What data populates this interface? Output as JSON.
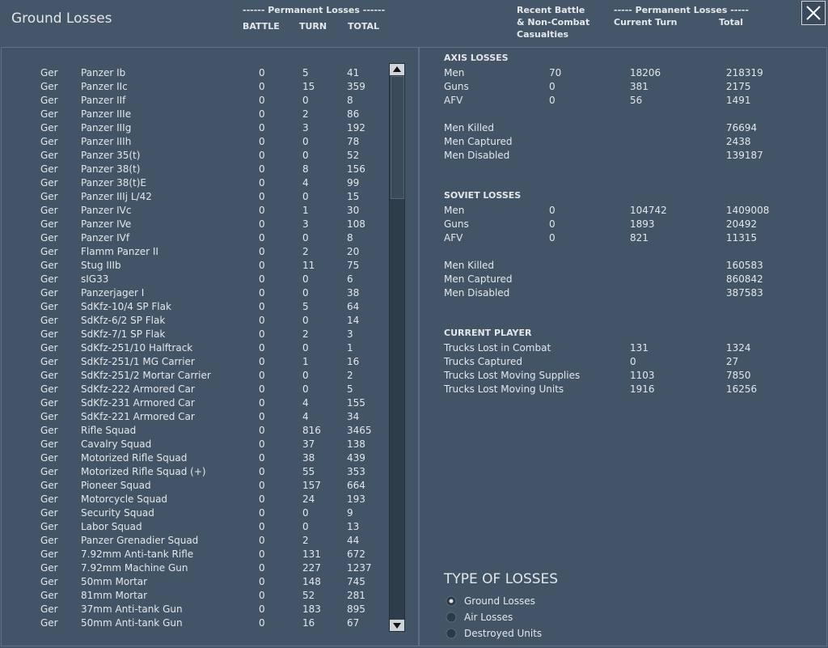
{
  "header": {
    "title": "Ground Losses",
    "left_group": "------ Permanent Losses ------",
    "left_columns": [
      "BATTLE",
      "TURN",
      "TOTAL"
    ],
    "right_recent": [
      "Recent Battle",
      "& Non-Combat",
      "Casualties"
    ],
    "right_group": "----- Permanent Losses -----",
    "right_columns": [
      "Current Turn",
      "Total"
    ]
  },
  "table": {
    "rows": [
      [
        "Ger",
        "Panzer Ib",
        "0",
        "5",
        "41"
      ],
      [
        "Ger",
        "Panzer IIc",
        "0",
        "15",
        "359"
      ],
      [
        "Ger",
        "Panzer IIf",
        "0",
        "0",
        "8"
      ],
      [
        "Ger",
        "Panzer IIIe",
        "0",
        "2",
        "86"
      ],
      [
        "Ger",
        "Panzer IIIg",
        "0",
        "3",
        "192"
      ],
      [
        "Ger",
        "Panzer IIIh",
        "0",
        "0",
        "78"
      ],
      [
        "Ger",
        "Panzer 35(t)",
        "0",
        "0",
        "52"
      ],
      [
        "Ger",
        "Panzer 38(t)",
        "0",
        "8",
        "156"
      ],
      [
        "Ger",
        "Panzer 38(t)E",
        "0",
        "4",
        "99"
      ],
      [
        "Ger",
        "Panzer IIIj L/42",
        "0",
        "0",
        "15"
      ],
      [
        "Ger",
        "Panzer IVc",
        "0",
        "1",
        "30"
      ],
      [
        "Ger",
        "Panzer IVe",
        "0",
        "3",
        "108"
      ],
      [
        "Ger",
        "Panzer IVf",
        "0",
        "0",
        "8"
      ],
      [
        "Ger",
        "Flamm Panzer II",
        "0",
        "2",
        "20"
      ],
      [
        "Ger",
        "Stug IIIb",
        "0",
        "11",
        "75"
      ],
      [
        "Ger",
        "sIG33",
        "0",
        "0",
        "6"
      ],
      [
        "Ger",
        "Panzerjager I",
        "0",
        "0",
        "38"
      ],
      [
        "Ger",
        "SdKfz-10/4 SP Flak",
        "0",
        "5",
        "64"
      ],
      [
        "Ger",
        "SdKfz-6/2 SP Flak",
        "0",
        "0",
        "14"
      ],
      [
        "Ger",
        "SdKfz-7/1 SP Flak",
        "0",
        "2",
        "3"
      ],
      [
        "Ger",
        "SdKfz-251/10 Halftrack",
        "0",
        "0",
        "1"
      ],
      [
        "Ger",
        "SdKfz-251/1 MG Carrier",
        "0",
        "1",
        "16"
      ],
      [
        "Ger",
        "SdKfz-251/2 Mortar Carrier",
        "0",
        "0",
        "2"
      ],
      [
        "Ger",
        "SdKfz-222 Armored Car",
        "0",
        "0",
        "5"
      ],
      [
        "Ger",
        "SdKfz-231 Armored Car",
        "0",
        "4",
        "155"
      ],
      [
        "Ger",
        "SdKfz-221 Armored Car",
        "0",
        "4",
        "34"
      ],
      [
        "Ger",
        "Rifle Squad",
        "0",
        "816",
        "3465"
      ],
      [
        "Ger",
        "Cavalry Squad",
        "0",
        "37",
        "138"
      ],
      [
        "Ger",
        "Motorized Rifle Squad",
        "0",
        "38",
        "439"
      ],
      [
        "Ger",
        "Motorized Rifle Squad (+)",
        "0",
        "55",
        "353"
      ],
      [
        "Ger",
        "Pioneer Squad",
        "0",
        "157",
        "664"
      ],
      [
        "Ger",
        "Motorcycle Squad",
        "0",
        "24",
        "193"
      ],
      [
        "Ger",
        "Security Squad",
        "0",
        "0",
        "9"
      ],
      [
        "Ger",
        "Labor Squad",
        "0",
        "0",
        "13"
      ],
      [
        "Ger",
        "Panzer Grenadier Squad",
        "0",
        "2",
        "44"
      ],
      [
        "Ger",
        "7.92mm Anti-tank Rifle",
        "0",
        "131",
        "672"
      ],
      [
        "Ger",
        "7.92mm Machine Gun",
        "0",
        "227",
        "1237"
      ],
      [
        "Ger",
        "50mm Mortar",
        "0",
        "148",
        "745"
      ],
      [
        "Ger",
        "81mm Mortar",
        "0",
        "52",
        "281"
      ],
      [
        "Ger",
        "37mm Anti-tank Gun",
        "0",
        "183",
        "895"
      ],
      [
        "Ger",
        "50mm Anti-tank Gun",
        "0",
        "16",
        "67"
      ]
    ]
  },
  "axis": {
    "title": "AXIS LOSSES",
    "rows": [
      {
        "label": "Men",
        "recent": "70",
        "current": "18206",
        "total": "218319"
      },
      {
        "label": "Guns",
        "recent": "0",
        "current": "381",
        "total": "2175"
      },
      {
        "label": "AFV",
        "recent": "0",
        "current": "56",
        "total": "1491"
      }
    ],
    "men": [
      {
        "label": "Men Killed",
        "total": "76694"
      },
      {
        "label": "Men Captured",
        "total": "2438"
      },
      {
        "label": "Men Disabled",
        "total": "139187"
      }
    ]
  },
  "soviet": {
    "title": "SOVIET LOSSES",
    "rows": [
      {
        "label": "Men",
        "recent": "0",
        "current": "104742",
        "total": "1409008"
      },
      {
        "label": "Guns",
        "recent": "0",
        "current": "1893",
        "total": "20492"
      },
      {
        "label": "AFV",
        "recent": "0",
        "current": "821",
        "total": "11315"
      }
    ],
    "men": [
      {
        "label": "Men Killed",
        "total": "160583"
      },
      {
        "label": "Men Captured",
        "total": "860842"
      },
      {
        "label": "Men Disabled",
        "total": "387583"
      }
    ]
  },
  "player": {
    "title": "CURRENT PLAYER",
    "rows": [
      {
        "label": "Trucks Lost in Combat",
        "current": "131",
        "total": "1324"
      },
      {
        "label": "Trucks Captured",
        "current": "0",
        "total": "27"
      },
      {
        "label": "Trucks Lost Moving Supplies",
        "current": "1103",
        "total": "7850"
      },
      {
        "label": "Trucks Lost Moving Units",
        "current": "1916",
        "total": "16256"
      }
    ]
  },
  "type_of_losses": {
    "title": "TYPE OF LOSSES",
    "options": [
      "Ground Losses",
      "Air Losses",
      "Destroyed Units"
    ],
    "selected": 0
  }
}
